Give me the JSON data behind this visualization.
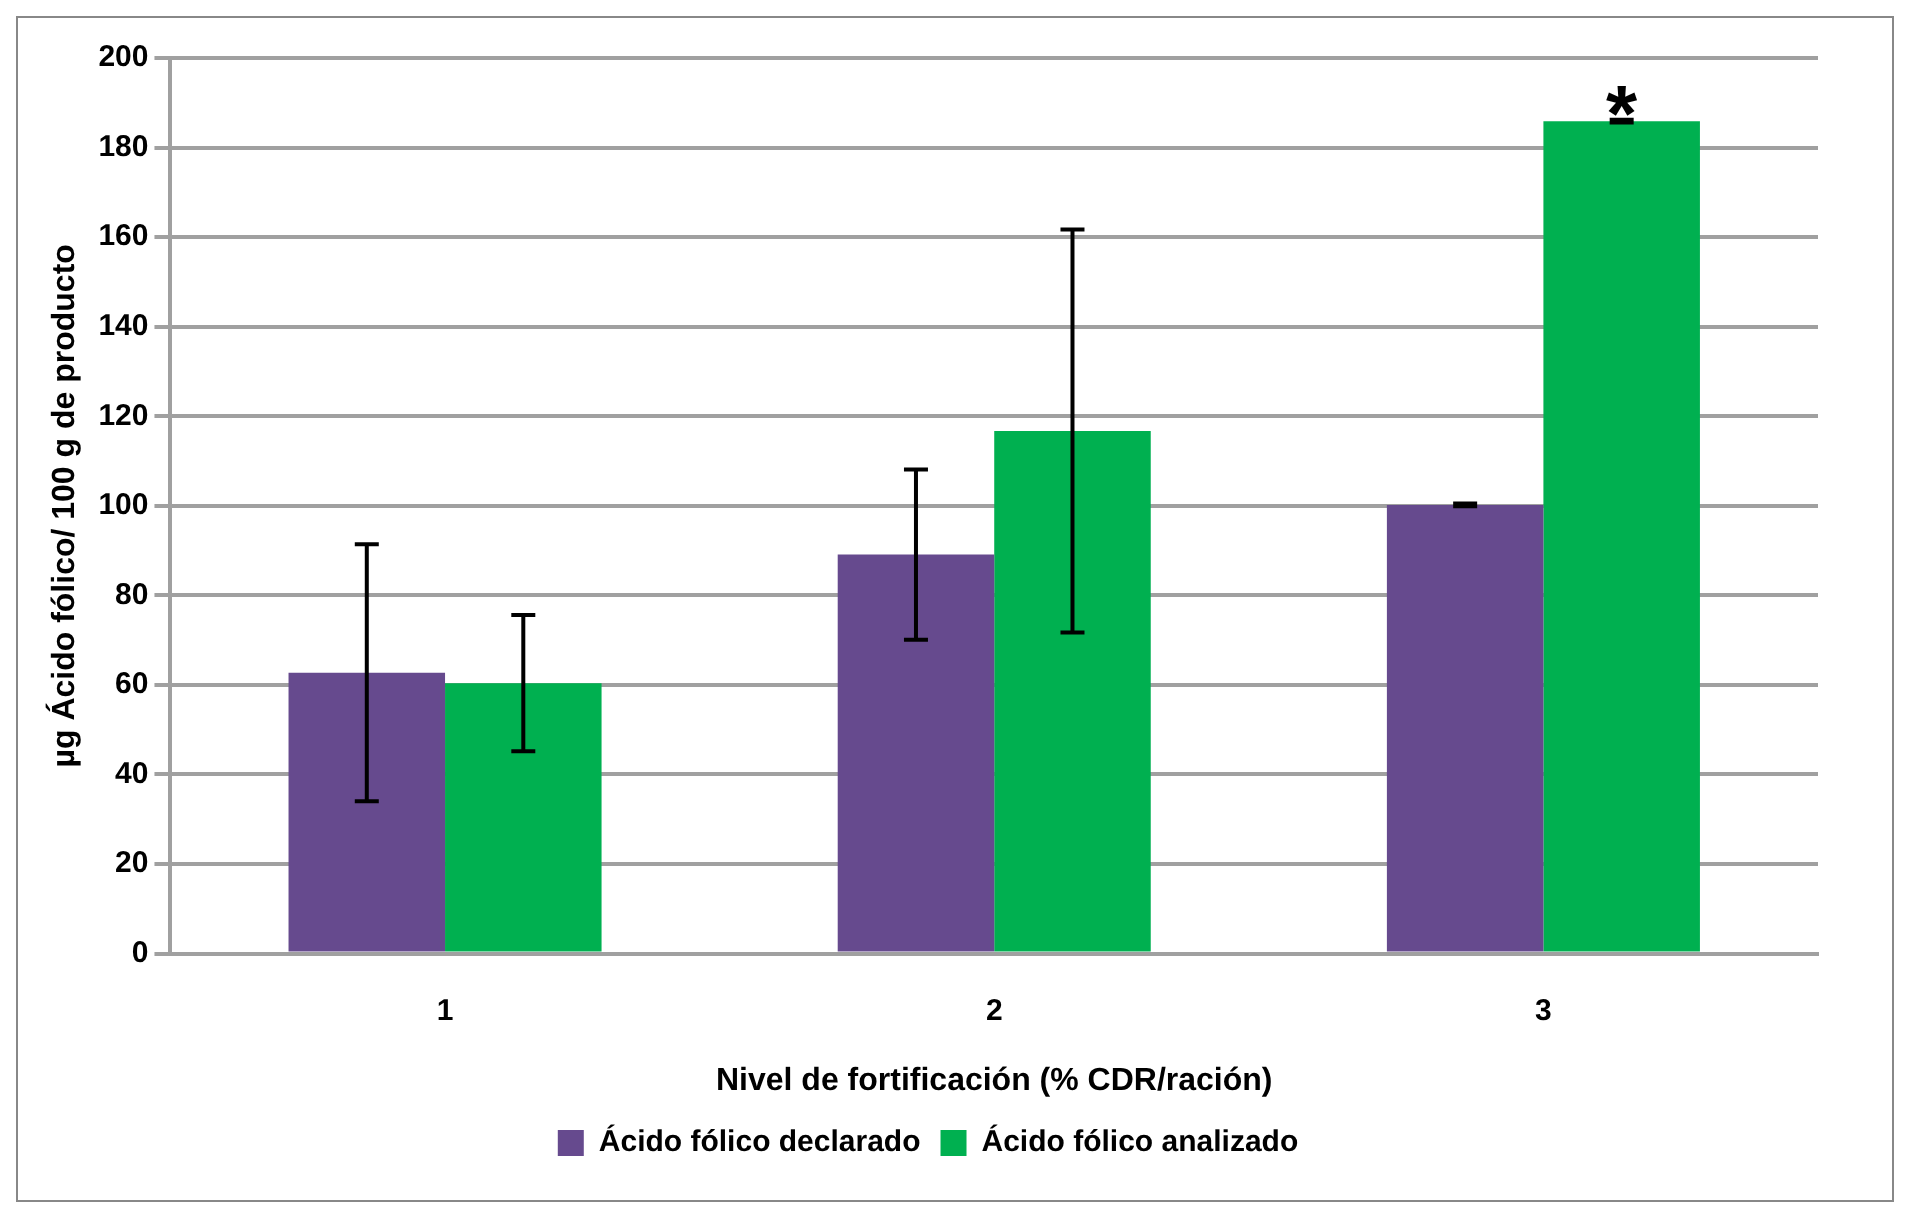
{
  "chart_data": {
    "type": "bar",
    "xlabel": "Nivel de fortificación (% CDR/ración)",
    "ylabel": "µg Ácido fólico/ 100 g de producto",
    "categories": [
      "1",
      "2",
      "3"
    ],
    "series": [
      {
        "name": "Ácido fólico declarado",
        "color": "#664a8e",
        "values": [
          62.7,
          89.1,
          100.2
        ],
        "errors": [
          28.7,
          19,
          0.3
        ]
      },
      {
        "name": "Ácido fólico analizado",
        "color": "#00b050",
        "values": [
          60.4,
          116.7,
          185.9
        ],
        "errors": [
          15.2,
          45,
          0.3
        ]
      }
    ],
    "ylim": [
      0,
      200
    ],
    "yticks": [
      0,
      20,
      40,
      60,
      80,
      100,
      120,
      140,
      160,
      180,
      200
    ],
    "grid": "y",
    "legend": "bottom",
    "annotations": [
      {
        "text": "*",
        "x": "3",
        "y": 186
      }
    ]
  }
}
